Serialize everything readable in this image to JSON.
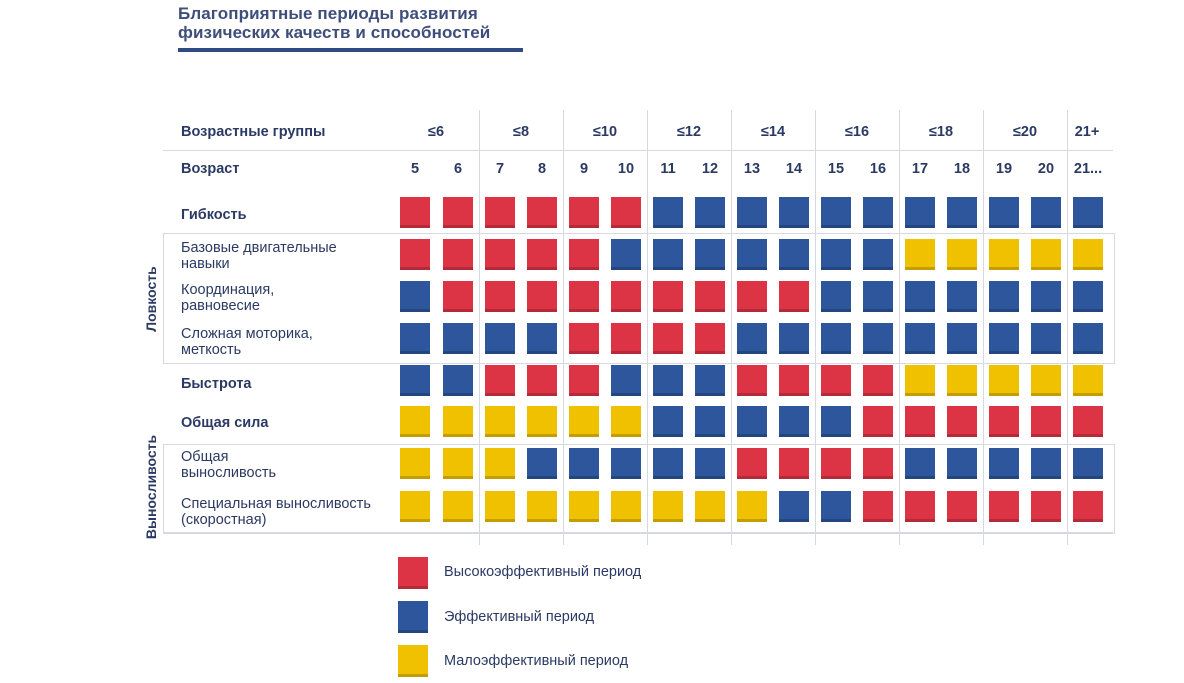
{
  "title_lines": [
    "Благоприятные периоды развития",
    "физических качеств и способностей"
  ],
  "header": {
    "groups_label": "Возрастные группы",
    "age_label": "Возраст",
    "groups": [
      "≤6",
      "≤8",
      "≤10",
      "≤12",
      "≤14",
      "≤16",
      "≤18",
      "≤20",
      "21+"
    ],
    "ages": [
      "5",
      "6",
      "7",
      "8",
      "9",
      "10",
      "11",
      "12",
      "13",
      "14",
      "15",
      "16",
      "17",
      "18",
      "19",
      "20",
      "21..."
    ]
  },
  "side_labels": {
    "dexterity": "Ловкость",
    "endurance": "Выносливость"
  },
  "colors": {
    "H": "#dc3445",
    "E": "#2d569c",
    "L": "#efc100"
  },
  "legend": [
    {
      "key": "H",
      "label": "Высокоэффективный период"
    },
    {
      "key": "E",
      "label": "Эффективный период"
    },
    {
      "key": "L",
      "label": "Малоэффективный период"
    }
  ],
  "chart_data": {
    "type": "heatmap",
    "title": "Благоприятные периоды развития физических качеств и способностей",
    "x": [
      "5",
      "6",
      "7",
      "8",
      "9",
      "10",
      "11",
      "12",
      "13",
      "14",
      "15",
      "16",
      "17",
      "18",
      "19",
      "20",
      "21..."
    ],
    "x_groups": [
      "≤6",
      "≤8",
      "≤10",
      "≤12",
      "≤14",
      "≤16",
      "≤18",
      "≤20",
      "21+"
    ],
    "legend": {
      "H": "Высокоэффективный период",
      "E": "Эффективный период",
      "L": "Малоэффективный период"
    },
    "rows": [
      {
        "label": "Гибкость",
        "values": [
          "H",
          "H",
          "H",
          "H",
          "H",
          "H",
          "E",
          "E",
          "E",
          "E",
          "E",
          "E",
          "E",
          "E",
          "E",
          "E",
          "E"
        ]
      },
      {
        "label": "Базовые двигательные навыки",
        "values": [
          "H",
          "H",
          "H",
          "H",
          "H",
          "E",
          "E",
          "E",
          "E",
          "E",
          "E",
          "E",
          "L",
          "L",
          "L",
          "L",
          "L"
        ]
      },
      {
        "label": "Координация, равновесие",
        "values": [
          "E",
          "H",
          "H",
          "H",
          "H",
          "H",
          "H",
          "H",
          "H",
          "H",
          "E",
          "E",
          "E",
          "E",
          "E",
          "E",
          "E"
        ]
      },
      {
        "label": "Сложная моторика, меткость",
        "values": [
          "E",
          "E",
          "E",
          "E",
          "H",
          "H",
          "H",
          "H",
          "E",
          "E",
          "E",
          "E",
          "E",
          "E",
          "E",
          "E",
          "E"
        ]
      },
      {
        "label": "Быстрота",
        "values": [
          "E",
          "E",
          "H",
          "H",
          "H",
          "E",
          "E",
          "E",
          "H",
          "H",
          "H",
          "H",
          "L",
          "L",
          "L",
          "L",
          "L"
        ]
      },
      {
        "label": "Общая сила",
        "values": [
          "L",
          "L",
          "L",
          "L",
          "L",
          "L",
          "E",
          "E",
          "E",
          "E",
          "E",
          "H",
          "H",
          "H",
          "H",
          "H",
          "H"
        ]
      },
      {
        "label": "Общая выносливость",
        "values": [
          "L",
          "L",
          "L",
          "E",
          "E",
          "E",
          "E",
          "E",
          "H",
          "H",
          "H",
          "H",
          "E",
          "E",
          "E",
          "E",
          "E"
        ]
      },
      {
        "label": "Специальная выносливость (скоростная)",
        "values": [
          "L",
          "L",
          "L",
          "L",
          "L",
          "L",
          "L",
          "L",
          "L",
          "E",
          "E",
          "H",
          "H",
          "H",
          "H",
          "H",
          "H"
        ]
      }
    ]
  }
}
